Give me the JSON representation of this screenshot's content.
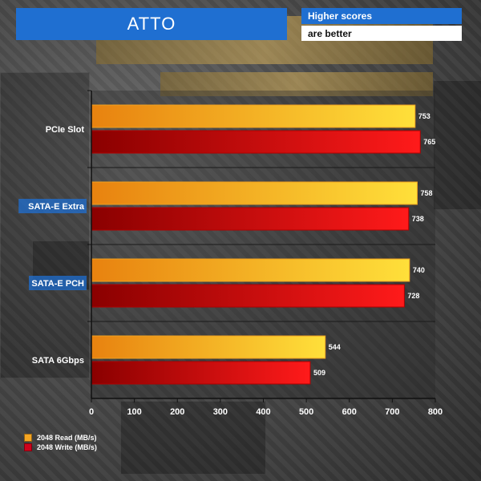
{
  "title": "ATTO",
  "note": {
    "line1": "Higher scores",
    "line2": "are better"
  },
  "colors": {
    "read_light": "#ffe03a",
    "read_dark": "#e8820f",
    "write_light": "#ff1a1a",
    "write_dark": "#8a0000",
    "read_swatch": "#f5a623",
    "write_swatch": "#d0021b",
    "label_highlight": "#1f6fd1"
  },
  "chart_data": {
    "type": "bar",
    "orientation": "horizontal",
    "title": "ATTO",
    "xlabel": "",
    "ylabel": "",
    "xlim": [
      0,
      800
    ],
    "xticks": [
      0,
      100,
      200,
      300,
      400,
      500,
      600,
      700,
      800
    ],
    "categories": [
      "PCIe Slot",
      "SATA-E Extra",
      "SATA-E PCH",
      "SATA 6Gbps"
    ],
    "highlighted_categories": [
      "SATA-E Extra",
      "SATA-E PCH"
    ],
    "series": [
      {
        "name": "2048 Read (MB/s)",
        "values": [
          753,
          758,
          740,
          544
        ]
      },
      {
        "name": "2048 Write (MB/s)",
        "values": [
          765,
          738,
          728,
          509
        ]
      }
    ],
    "legend_position": "bottom-left",
    "grid": true
  }
}
